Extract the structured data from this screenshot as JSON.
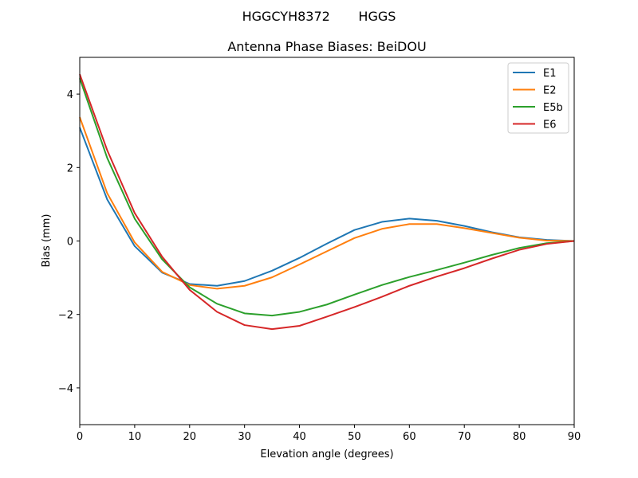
{
  "chart_data": {
    "type": "line",
    "suptitle": "HGGCYH8372       HGGS",
    "title": "Antenna Phase Biases: BeiDOU",
    "xlabel": "Elevation angle (degrees)",
    "ylabel": "Bias (mm)",
    "xlim": [
      0,
      90
    ],
    "ylim": [
      -5,
      5
    ],
    "xticks": [
      0,
      10,
      20,
      30,
      40,
      50,
      60,
      70,
      80,
      90
    ],
    "yticks": [
      -4,
      -2,
      0,
      2,
      4
    ],
    "ytick_labels": [
      "−4",
      "−2",
      "0",
      "2",
      "4"
    ],
    "grid": false,
    "legend_position": "top-right",
    "x": [
      0,
      5,
      10,
      15,
      20,
      25,
      30,
      35,
      40,
      45,
      50,
      55,
      60,
      65,
      70,
      75,
      80,
      85,
      90
    ],
    "series": [
      {
        "name": "E1",
        "color": "#1f77b4",
        "values": [
          3.09,
          1.13,
          -0.14,
          -0.86,
          -1.17,
          -1.22,
          -1.09,
          -0.81,
          -0.46,
          -0.07,
          0.3,
          0.52,
          0.61,
          0.55,
          0.41,
          0.24,
          0.1,
          0.03,
          0.0
        ]
      },
      {
        "name": "E2",
        "color": "#ff7f0e",
        "values": [
          3.37,
          1.3,
          -0.04,
          -0.84,
          -1.2,
          -1.3,
          -1.22,
          -0.99,
          -0.64,
          -0.28,
          0.08,
          0.33,
          0.46,
          0.46,
          0.35,
          0.22,
          0.09,
          0.01,
          0.0
        ]
      },
      {
        "name": "E5b",
        "color": "#2ca02c",
        "values": [
          4.43,
          2.26,
          0.61,
          -0.5,
          -1.26,
          -1.71,
          -1.97,
          -2.03,
          -1.93,
          -1.73,
          -1.46,
          -1.2,
          -0.98,
          -0.79,
          -0.59,
          -0.38,
          -0.19,
          -0.06,
          0.0
        ]
      },
      {
        "name": "E6",
        "color": "#d62728",
        "values": [
          4.54,
          2.47,
          0.76,
          -0.43,
          -1.33,
          -1.93,
          -2.29,
          -2.4,
          -2.31,
          -2.06,
          -1.8,
          -1.52,
          -1.22,
          -0.97,
          -0.74,
          -0.48,
          -0.24,
          -0.08,
          0.0
        ]
      }
    ]
  }
}
